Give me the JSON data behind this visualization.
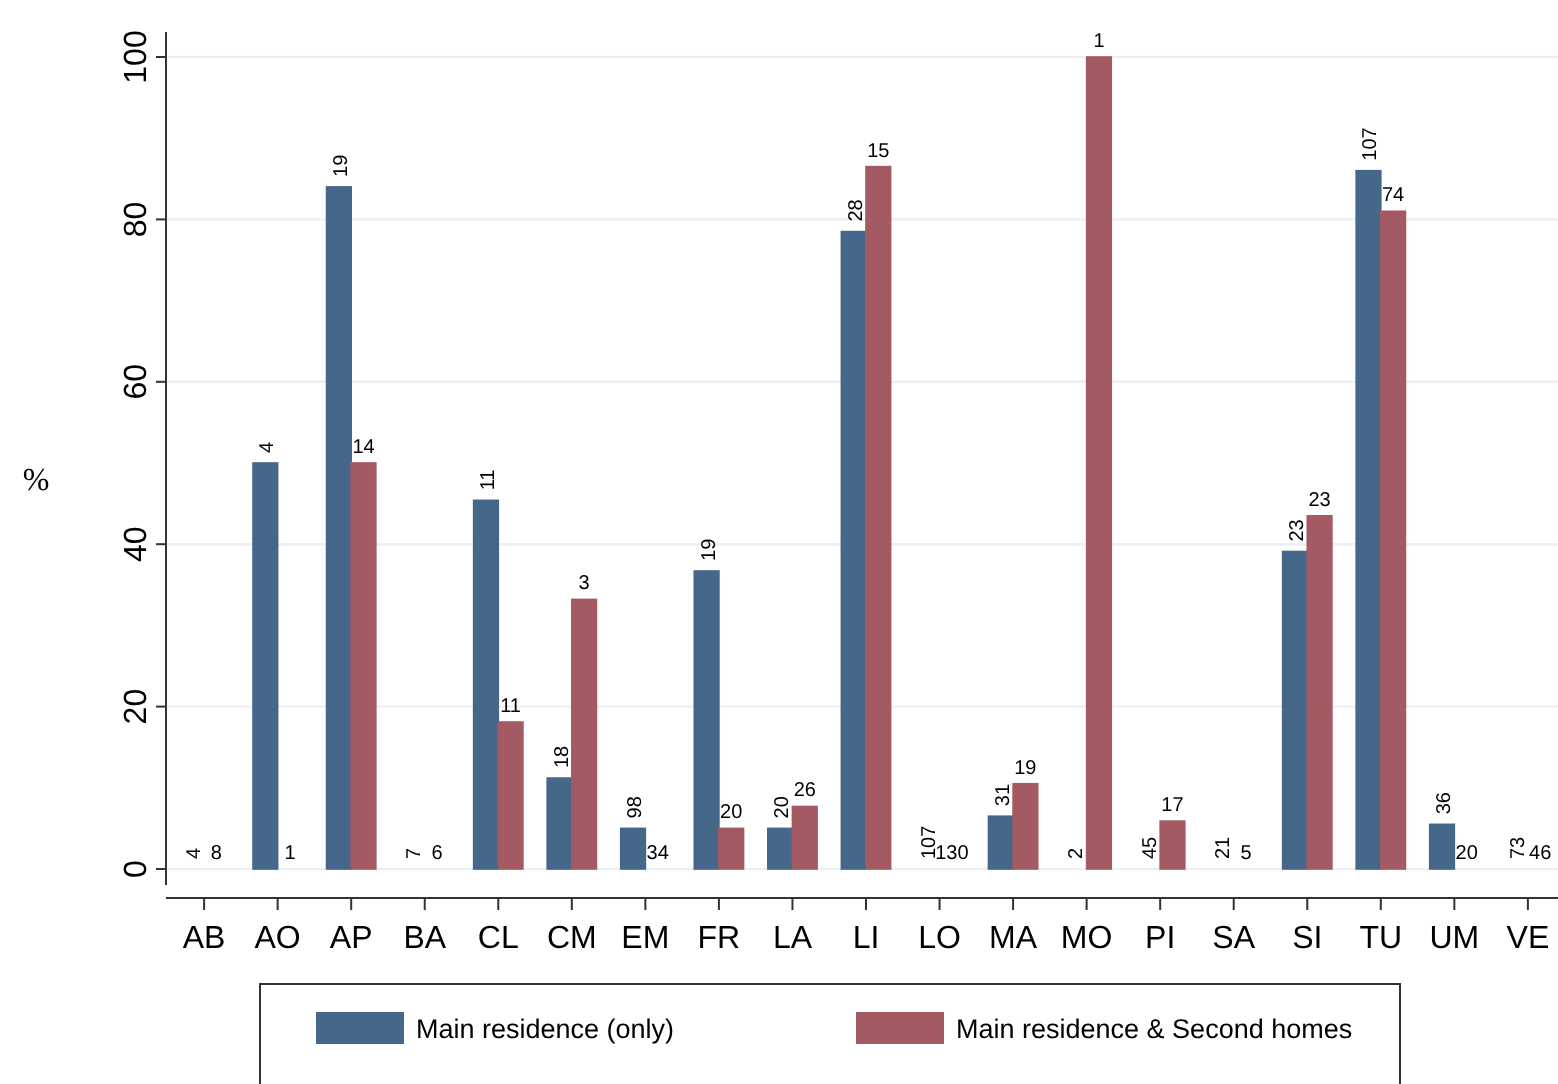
{
  "chart_data": {
    "type": "bar",
    "ylabel": "%",
    "categories": [
      "AB",
      "AO",
      "AP",
      "BA",
      "CL",
      "CM",
      "EM",
      "FR",
      "LA",
      "LI",
      "LO",
      "MA",
      "MO",
      "PI",
      "SA",
      "SI",
      "TU",
      "UM",
      "VE"
    ],
    "series": [
      {
        "name": "Main residence (only)",
        "color": "#45678a",
        "values": [
          0,
          50,
          84,
          0,
          45.4,
          11.2,
          5,
          36.7,
          5,
          78.5,
          0,
          6.5,
          0,
          0,
          0,
          39.1,
          86,
          5.5,
          0
        ]
      },
      {
        "name": "Main residence & Second homes",
        "color": "#a45a62",
        "values": [
          0,
          0,
          50,
          0,
          18.1,
          33.2,
          0,
          5,
          7.7,
          86.5,
          0,
          10.5,
          100,
          5.9,
          0,
          43.5,
          81,
          0,
          0
        ]
      }
    ],
    "annotations": [
      {
        "text": "4",
        "x": "AB",
        "y": 0
      },
      {
        "text": "8",
        "x": "AB",
        "y": 0
      },
      {
        "text": "4",
        "x": "AO",
        "y": 50
      },
      {
        "text": "1",
        "x": "AO",
        "y": 0
      },
      {
        "text": "19",
        "x": "AP",
        "y": 84
      },
      {
        "text": "14",
        "x": "AP",
        "y": 50
      },
      {
        "text": "7",
        "x": "BA",
        "y": 0
      },
      {
        "text": "6",
        "x": "BA",
        "y": 0
      },
      {
        "text": "11",
        "x": "CL",
        "y": 45.4
      },
      {
        "text": "11",
        "x": "CL",
        "y": 18.1
      },
      {
        "text": "18",
        "x": "CM",
        "y": 11.2
      },
      {
        "text": "3",
        "x": "CM",
        "y": 33.2
      },
      {
        "text": "98",
        "x": "EM",
        "y": 5
      },
      {
        "text": "34",
        "x": "EM",
        "y": 0
      },
      {
        "text": "19",
        "x": "FR",
        "y": 36.7
      },
      {
        "text": "20",
        "x": "FR",
        "y": 5
      },
      {
        "text": "20",
        "x": "LA",
        "y": 5
      },
      {
        "text": "26",
        "x": "LA",
        "y": 7.7
      },
      {
        "text": "28",
        "x": "LI",
        "y": 78.5
      },
      {
        "text": "15",
        "x": "LI",
        "y": 86.5
      },
      {
        "text": "107",
        "x": "LO",
        "y": 0
      },
      {
        "text": "130",
        "x": "LO",
        "y": 0
      },
      {
        "text": "31",
        "x": "MA",
        "y": 6.5
      },
      {
        "text": "19",
        "x": "MA",
        "y": 10.5
      },
      {
        "text": "2",
        "x": "MO",
        "y": 0
      },
      {
        "text": "1",
        "x": "MO",
        "y": 100
      },
      {
        "text": "45",
        "x": "PI",
        "y": 0
      },
      {
        "text": "17",
        "x": "PI",
        "y": 5.9
      },
      {
        "text": "21",
        "x": "SA",
        "y": 0
      },
      {
        "text": "5",
        "x": "SA",
        "y": 0
      },
      {
        "text": "23",
        "x": "SI",
        "y": 39.1
      },
      {
        "text": "23",
        "x": "SI",
        "y": 43.5
      },
      {
        "text": "107",
        "x": "TU",
        "y": 86
      },
      {
        "text": "74",
        "x": "TU",
        "y": 81
      },
      {
        "text": "36",
        "x": "UM",
        "y": 5.5
      },
      {
        "text": "20",
        "x": "UM",
        "y": 0
      },
      {
        "text": "73",
        "x": "VE",
        "y": 0
      },
      {
        "text": "46",
        "x": "VE",
        "y": 0
      }
    ],
    "ylim": [
      0,
      100
    ],
    "yticks": [
      0,
      20,
      40,
      60,
      80,
      100
    ],
    "grid": "y",
    "legend": "bottom"
  }
}
